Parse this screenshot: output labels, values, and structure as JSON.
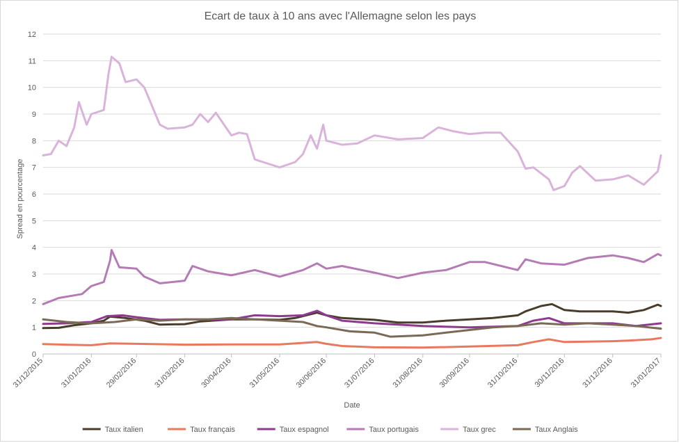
{
  "chart_data": {
    "type": "line",
    "title": "Ecart de taux à 10 ans avec l'Allemagne selon les pays",
    "xlabel": "Date",
    "ylabel": "Spread en pourcentage",
    "ylim": [
      0,
      12
    ],
    "yticks": [
      "0",
      "1",
      "2",
      "3",
      "4",
      "5",
      "6",
      "7",
      "8",
      "9",
      "10",
      "11",
      "12"
    ],
    "xlim": [
      "2015-12-31",
      "2017-01-31"
    ],
    "xticks": [
      {
        "date": "2015-12-31",
        "label": "31/12/2015"
      },
      {
        "date": "2016-01-31",
        "label": "31/01/2016"
      },
      {
        "date": "2016-02-29",
        "label": "29/02/2016"
      },
      {
        "date": "2016-03-31",
        "label": "31/03/2016"
      },
      {
        "date": "2016-04-30",
        "label": "30/04/2016"
      },
      {
        "date": "2016-05-31",
        "label": "31/05/2016"
      },
      {
        "date": "2016-06-30",
        "label": "30/06/2016"
      },
      {
        "date": "2016-07-31",
        "label": "31/07/2016"
      },
      {
        "date": "2016-08-31",
        "label": "31/08/2016"
      },
      {
        "date": "2016-09-30",
        "label": "30/09/2016"
      },
      {
        "date": "2016-10-31",
        "label": "31/10/2016"
      },
      {
        "date": "2016-11-30",
        "label": "30/11/2016"
      },
      {
        "date": "2016-12-31",
        "label": "31/12/2016"
      },
      {
        "date": "2017-01-31",
        "label": "31/01/2017"
      }
    ],
    "grid": true,
    "legend_position": "bottom",
    "series": [
      {
        "name": "Taux italien",
        "color": "#4a3c2a",
        "points": [
          [
            "2015-12-31",
            0.97
          ],
          [
            "2016-01-10",
            0.98
          ],
          [
            "2016-01-20",
            1.08
          ],
          [
            "2016-01-31",
            1.15
          ],
          [
            "2016-02-08",
            1.25
          ],
          [
            "2016-02-12",
            1.4
          ],
          [
            "2016-02-22",
            1.35
          ],
          [
            "2016-03-05",
            1.25
          ],
          [
            "2016-03-15",
            1.1
          ],
          [
            "2016-03-31",
            1.12
          ],
          [
            "2016-04-10",
            1.22
          ],
          [
            "2016-04-30",
            1.3
          ],
          [
            "2016-05-15",
            1.3
          ],
          [
            "2016-05-31",
            1.28
          ],
          [
            "2016-06-10",
            1.35
          ],
          [
            "2016-06-24",
            1.55
          ],
          [
            "2016-06-30",
            1.45
          ],
          [
            "2016-07-10",
            1.35
          ],
          [
            "2016-07-31",
            1.28
          ],
          [
            "2016-08-15",
            1.18
          ],
          [
            "2016-08-31",
            1.18
          ],
          [
            "2016-09-15",
            1.25
          ],
          [
            "2016-09-30",
            1.3
          ],
          [
            "2016-10-15",
            1.35
          ],
          [
            "2016-10-31",
            1.45
          ],
          [
            "2016-11-05",
            1.6
          ],
          [
            "2016-11-15",
            1.8
          ],
          [
            "2016-11-22",
            1.87
          ],
          [
            "2016-11-30",
            1.65
          ],
          [
            "2016-12-10",
            1.6
          ],
          [
            "2016-12-31",
            1.6
          ],
          [
            "2017-01-10",
            1.55
          ],
          [
            "2017-01-20",
            1.65
          ],
          [
            "2017-01-29",
            1.85
          ],
          [
            "2017-01-31",
            1.8
          ]
        ]
      },
      {
        "name": "Taux français",
        "color": "#e9795e",
        "points": [
          [
            "2015-12-31",
            0.37
          ],
          [
            "2016-01-15",
            0.35
          ],
          [
            "2016-01-31",
            0.33
          ],
          [
            "2016-02-12",
            0.4
          ],
          [
            "2016-02-29",
            0.38
          ],
          [
            "2016-03-31",
            0.35
          ],
          [
            "2016-04-30",
            0.36
          ],
          [
            "2016-05-31",
            0.36
          ],
          [
            "2016-06-24",
            0.45
          ],
          [
            "2016-06-30",
            0.38
          ],
          [
            "2016-07-10",
            0.3
          ],
          [
            "2016-07-31",
            0.25
          ],
          [
            "2016-08-31",
            0.24
          ],
          [
            "2016-09-30",
            0.28
          ],
          [
            "2016-10-31",
            0.33
          ],
          [
            "2016-11-10",
            0.45
          ],
          [
            "2016-11-20",
            0.55
          ],
          [
            "2016-11-30",
            0.45
          ],
          [
            "2016-12-31",
            0.48
          ],
          [
            "2017-01-10",
            0.5
          ],
          [
            "2017-01-25",
            0.55
          ],
          [
            "2017-01-31",
            0.6
          ]
        ]
      },
      {
        "name": "Taux espagnol",
        "color": "#8e3a8e",
        "points": [
          [
            "2015-12-31",
            1.13
          ],
          [
            "2016-01-15",
            1.15
          ],
          [
            "2016-01-31",
            1.2
          ],
          [
            "2016-02-10",
            1.42
          ],
          [
            "2016-02-20",
            1.45
          ],
          [
            "2016-02-29",
            1.38
          ],
          [
            "2016-03-15",
            1.28
          ],
          [
            "2016-03-31",
            1.3
          ],
          [
            "2016-04-30",
            1.3
          ],
          [
            "2016-05-15",
            1.45
          ],
          [
            "2016-05-31",
            1.42
          ],
          [
            "2016-06-15",
            1.45
          ],
          [
            "2016-06-24",
            1.62
          ],
          [
            "2016-06-30",
            1.45
          ],
          [
            "2016-07-10",
            1.25
          ],
          [
            "2016-07-31",
            1.15
          ],
          [
            "2016-08-31",
            1.05
          ],
          [
            "2016-09-30",
            1.0
          ],
          [
            "2016-10-31",
            1.05
          ],
          [
            "2016-11-10",
            1.25
          ],
          [
            "2016-11-20",
            1.35
          ],
          [
            "2016-11-30",
            1.15
          ],
          [
            "2016-12-31",
            1.15
          ],
          [
            "2017-01-15",
            1.05
          ],
          [
            "2017-01-31",
            1.15
          ]
        ]
      },
      {
        "name": "Taux portugais",
        "color": "#b57bb5",
        "points": [
          [
            "2015-12-31",
            1.87
          ],
          [
            "2016-01-10",
            2.1
          ],
          [
            "2016-01-25",
            2.25
          ],
          [
            "2016-01-31",
            2.55
          ],
          [
            "2016-02-08",
            2.7
          ],
          [
            "2016-02-12",
            3.5
          ],
          [
            "2016-02-13",
            3.9
          ],
          [
            "2016-02-18",
            3.25
          ],
          [
            "2016-02-29",
            3.2
          ],
          [
            "2016-03-05",
            2.9
          ],
          [
            "2016-03-15",
            2.65
          ],
          [
            "2016-03-31",
            2.75
          ],
          [
            "2016-04-05",
            3.3
          ],
          [
            "2016-04-15",
            3.1
          ],
          [
            "2016-04-30",
            2.95
          ],
          [
            "2016-05-15",
            3.15
          ],
          [
            "2016-05-31",
            2.9
          ],
          [
            "2016-06-15",
            3.15
          ],
          [
            "2016-06-24",
            3.4
          ],
          [
            "2016-06-30",
            3.2
          ],
          [
            "2016-07-10",
            3.3
          ],
          [
            "2016-07-31",
            3.05
          ],
          [
            "2016-08-15",
            2.85
          ],
          [
            "2016-08-31",
            3.05
          ],
          [
            "2016-09-15",
            3.15
          ],
          [
            "2016-09-30",
            3.45
          ],
          [
            "2016-10-10",
            3.45
          ],
          [
            "2016-10-31",
            3.15
          ],
          [
            "2016-11-05",
            3.55
          ],
          [
            "2016-11-15",
            3.4
          ],
          [
            "2016-11-30",
            3.35
          ],
          [
            "2016-12-15",
            3.6
          ],
          [
            "2016-12-31",
            3.7
          ],
          [
            "2017-01-10",
            3.6
          ],
          [
            "2017-01-20",
            3.45
          ],
          [
            "2017-01-29",
            3.75
          ],
          [
            "2017-01-31",
            3.7
          ]
        ]
      },
      {
        "name": "Taux grec",
        "color": "#d9b3d9",
        "points": [
          [
            "2015-12-31",
            7.45
          ],
          [
            "2016-01-05",
            7.5
          ],
          [
            "2016-01-10",
            8.0
          ],
          [
            "2016-01-15",
            7.8
          ],
          [
            "2016-01-20",
            8.5
          ],
          [
            "2016-01-23",
            9.45
          ],
          [
            "2016-01-28",
            8.6
          ],
          [
            "2016-01-31",
            9.0
          ],
          [
            "2016-02-08",
            9.15
          ],
          [
            "2016-02-11",
            10.5
          ],
          [
            "2016-02-13",
            11.15
          ],
          [
            "2016-02-18",
            10.9
          ],
          [
            "2016-02-22",
            10.2
          ],
          [
            "2016-02-29",
            10.3
          ],
          [
            "2016-03-05",
            10.0
          ],
          [
            "2016-03-10",
            9.3
          ],
          [
            "2016-03-15",
            8.6
          ],
          [
            "2016-03-20",
            8.45
          ],
          [
            "2016-03-31",
            8.5
          ],
          [
            "2016-04-05",
            8.6
          ],
          [
            "2016-04-10",
            9.0
          ],
          [
            "2016-04-15",
            8.7
          ],
          [
            "2016-04-20",
            9.05
          ],
          [
            "2016-04-30",
            8.2
          ],
          [
            "2016-05-05",
            8.3
          ],
          [
            "2016-05-10",
            8.25
          ],
          [
            "2016-05-15",
            7.3
          ],
          [
            "2016-05-31",
            7.0
          ],
          [
            "2016-06-10",
            7.2
          ],
          [
            "2016-06-15",
            7.5
          ],
          [
            "2016-06-20",
            8.2
          ],
          [
            "2016-06-24",
            7.7
          ],
          [
            "2016-06-28",
            8.6
          ],
          [
            "2016-06-30",
            8.0
          ],
          [
            "2016-07-10",
            7.85
          ],
          [
            "2016-07-20",
            7.9
          ],
          [
            "2016-07-31",
            8.2
          ],
          [
            "2016-08-15",
            8.05
          ],
          [
            "2016-08-31",
            8.1
          ],
          [
            "2016-09-10",
            8.5
          ],
          [
            "2016-09-20",
            8.35
          ],
          [
            "2016-09-30",
            8.25
          ],
          [
            "2016-10-10",
            8.3
          ],
          [
            "2016-10-20",
            8.3
          ],
          [
            "2016-10-31",
            7.6
          ],
          [
            "2016-11-05",
            6.95
          ],
          [
            "2016-11-10",
            7.0
          ],
          [
            "2016-11-20",
            6.55
          ],
          [
            "2016-11-23",
            6.15
          ],
          [
            "2016-11-30",
            6.3
          ],
          [
            "2016-12-05",
            6.8
          ],
          [
            "2016-12-10",
            7.05
          ],
          [
            "2016-12-20",
            6.5
          ],
          [
            "2016-12-31",
            6.55
          ],
          [
            "2017-01-10",
            6.7
          ],
          [
            "2017-01-20",
            6.35
          ],
          [
            "2017-01-29",
            6.85
          ],
          [
            "2017-01-31",
            7.45
          ]
        ]
      },
      {
        "name": "Taux Anglais",
        "color": "#7a6a55",
        "points": [
          [
            "2015-12-31",
            1.3
          ],
          [
            "2016-01-15",
            1.2
          ],
          [
            "2016-01-31",
            1.15
          ],
          [
            "2016-02-15",
            1.2
          ],
          [
            "2016-02-29",
            1.3
          ],
          [
            "2016-03-15",
            1.25
          ],
          [
            "2016-03-31",
            1.3
          ],
          [
            "2016-04-15",
            1.3
          ],
          [
            "2016-04-30",
            1.35
          ],
          [
            "2016-05-15",
            1.3
          ],
          [
            "2016-05-31",
            1.25
          ],
          [
            "2016-06-15",
            1.2
          ],
          [
            "2016-06-24",
            1.05
          ],
          [
            "2016-06-30",
            1.0
          ],
          [
            "2016-07-15",
            0.85
          ],
          [
            "2016-07-31",
            0.8
          ],
          [
            "2016-08-10",
            0.65
          ],
          [
            "2016-08-31",
            0.7
          ],
          [
            "2016-09-15",
            0.8
          ],
          [
            "2016-09-30",
            0.9
          ],
          [
            "2016-10-15",
            1.0
          ],
          [
            "2016-10-31",
            1.05
          ],
          [
            "2016-11-15",
            1.15
          ],
          [
            "2016-11-30",
            1.1
          ],
          [
            "2016-12-15",
            1.15
          ],
          [
            "2016-12-31",
            1.1
          ],
          [
            "2017-01-15",
            1.05
          ],
          [
            "2017-01-31",
            0.95
          ]
        ]
      }
    ]
  }
}
